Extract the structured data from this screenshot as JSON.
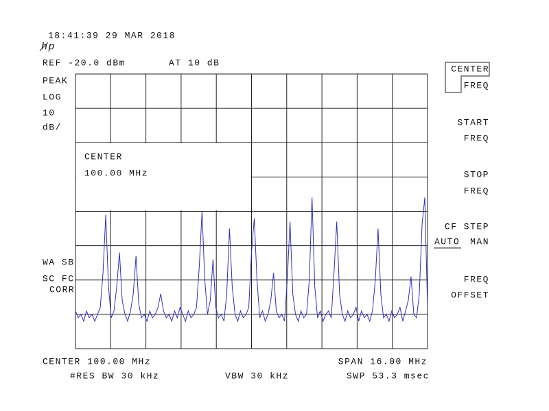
{
  "logo": "hp",
  "header": {
    "timestamp": "18:41:39  29 MAR 2018",
    "ref": "REF -20.0 dBm",
    "atten": "AT 10 dB"
  },
  "left_labels": [
    "PEAK",
    "LOG",
    "10",
    "dB/"
  ],
  "left_labels_lower": [
    "WA SB",
    "SC FC",
    "CORR"
  ],
  "center_box": {
    "label": "CENTER",
    "value": "100.00 MHz"
  },
  "softkeys": [
    {
      "lines": [
        "CENTER",
        "FREQ"
      ]
    },
    {
      "lines": [
        "START",
        "FREQ"
      ]
    },
    {
      "lines": [
        "STOP",
        "FREQ"
      ]
    },
    {
      "lines": [
        "CF STEP",
        "AUTO",
        "MAN"
      ]
    },
    {
      "lines": [
        "FREQ",
        "OFFSET"
      ]
    }
  ],
  "footer": {
    "center": "CENTER 100.00 MHz",
    "span": "SPAN 16.00 MHz",
    "rbw": "#RES BW 30 kHz",
    "vbw": "VBW 30 kHz",
    "swp": "SWP 53.3 msec"
  },
  "trace": {
    "type": "line",
    "color": "#3030b8",
    "ylim": [
      -100,
      -20
    ],
    "values": [
      -89,
      -91,
      -90,
      -92,
      -89,
      -91,
      -90,
      -92,
      -90,
      -88,
      -78,
      -61,
      -82,
      -91,
      -89,
      -82,
      -72,
      -86,
      -90,
      -92,
      -89,
      -84,
      -73,
      -87,
      -91,
      -90,
      -92,
      -89,
      -91,
      -90,
      -88,
      -84,
      -89,
      -91,
      -90,
      -92,
      -89,
      -91,
      -88,
      -90,
      -92,
      -89,
      -91,
      -90,
      -88,
      -76,
      -60,
      -80,
      -90,
      -86,
      -74,
      -88,
      -91,
      -90,
      -92,
      -84,
      -65,
      -82,
      -90,
      -92,
      -89,
      -91,
      -90,
      -88,
      -72,
      -62,
      -80,
      -91,
      -89,
      -92,
      -90,
      -86,
      -78,
      -89,
      -91,
      -90,
      -92,
      -80,
      -63,
      -84,
      -90,
      -92,
      -89,
      -91,
      -90,
      -80,
      -56,
      -82,
      -91,
      -89,
      -92,
      -90,
      -89,
      -91,
      -78,
      -63,
      -84,
      -90,
      -92,
      -89,
      -91,
      -90,
      -88,
      -92,
      -89,
      -91,
      -90,
      -92,
      -89,
      -80,
      -65,
      -84,
      -91,
      -90,
      -92,
      -89,
      -91,
      -90,
      -88,
      -92,
      -89,
      -86,
      -79,
      -90,
      -91,
      -84,
      -64,
      -56,
      -88
    ]
  }
}
